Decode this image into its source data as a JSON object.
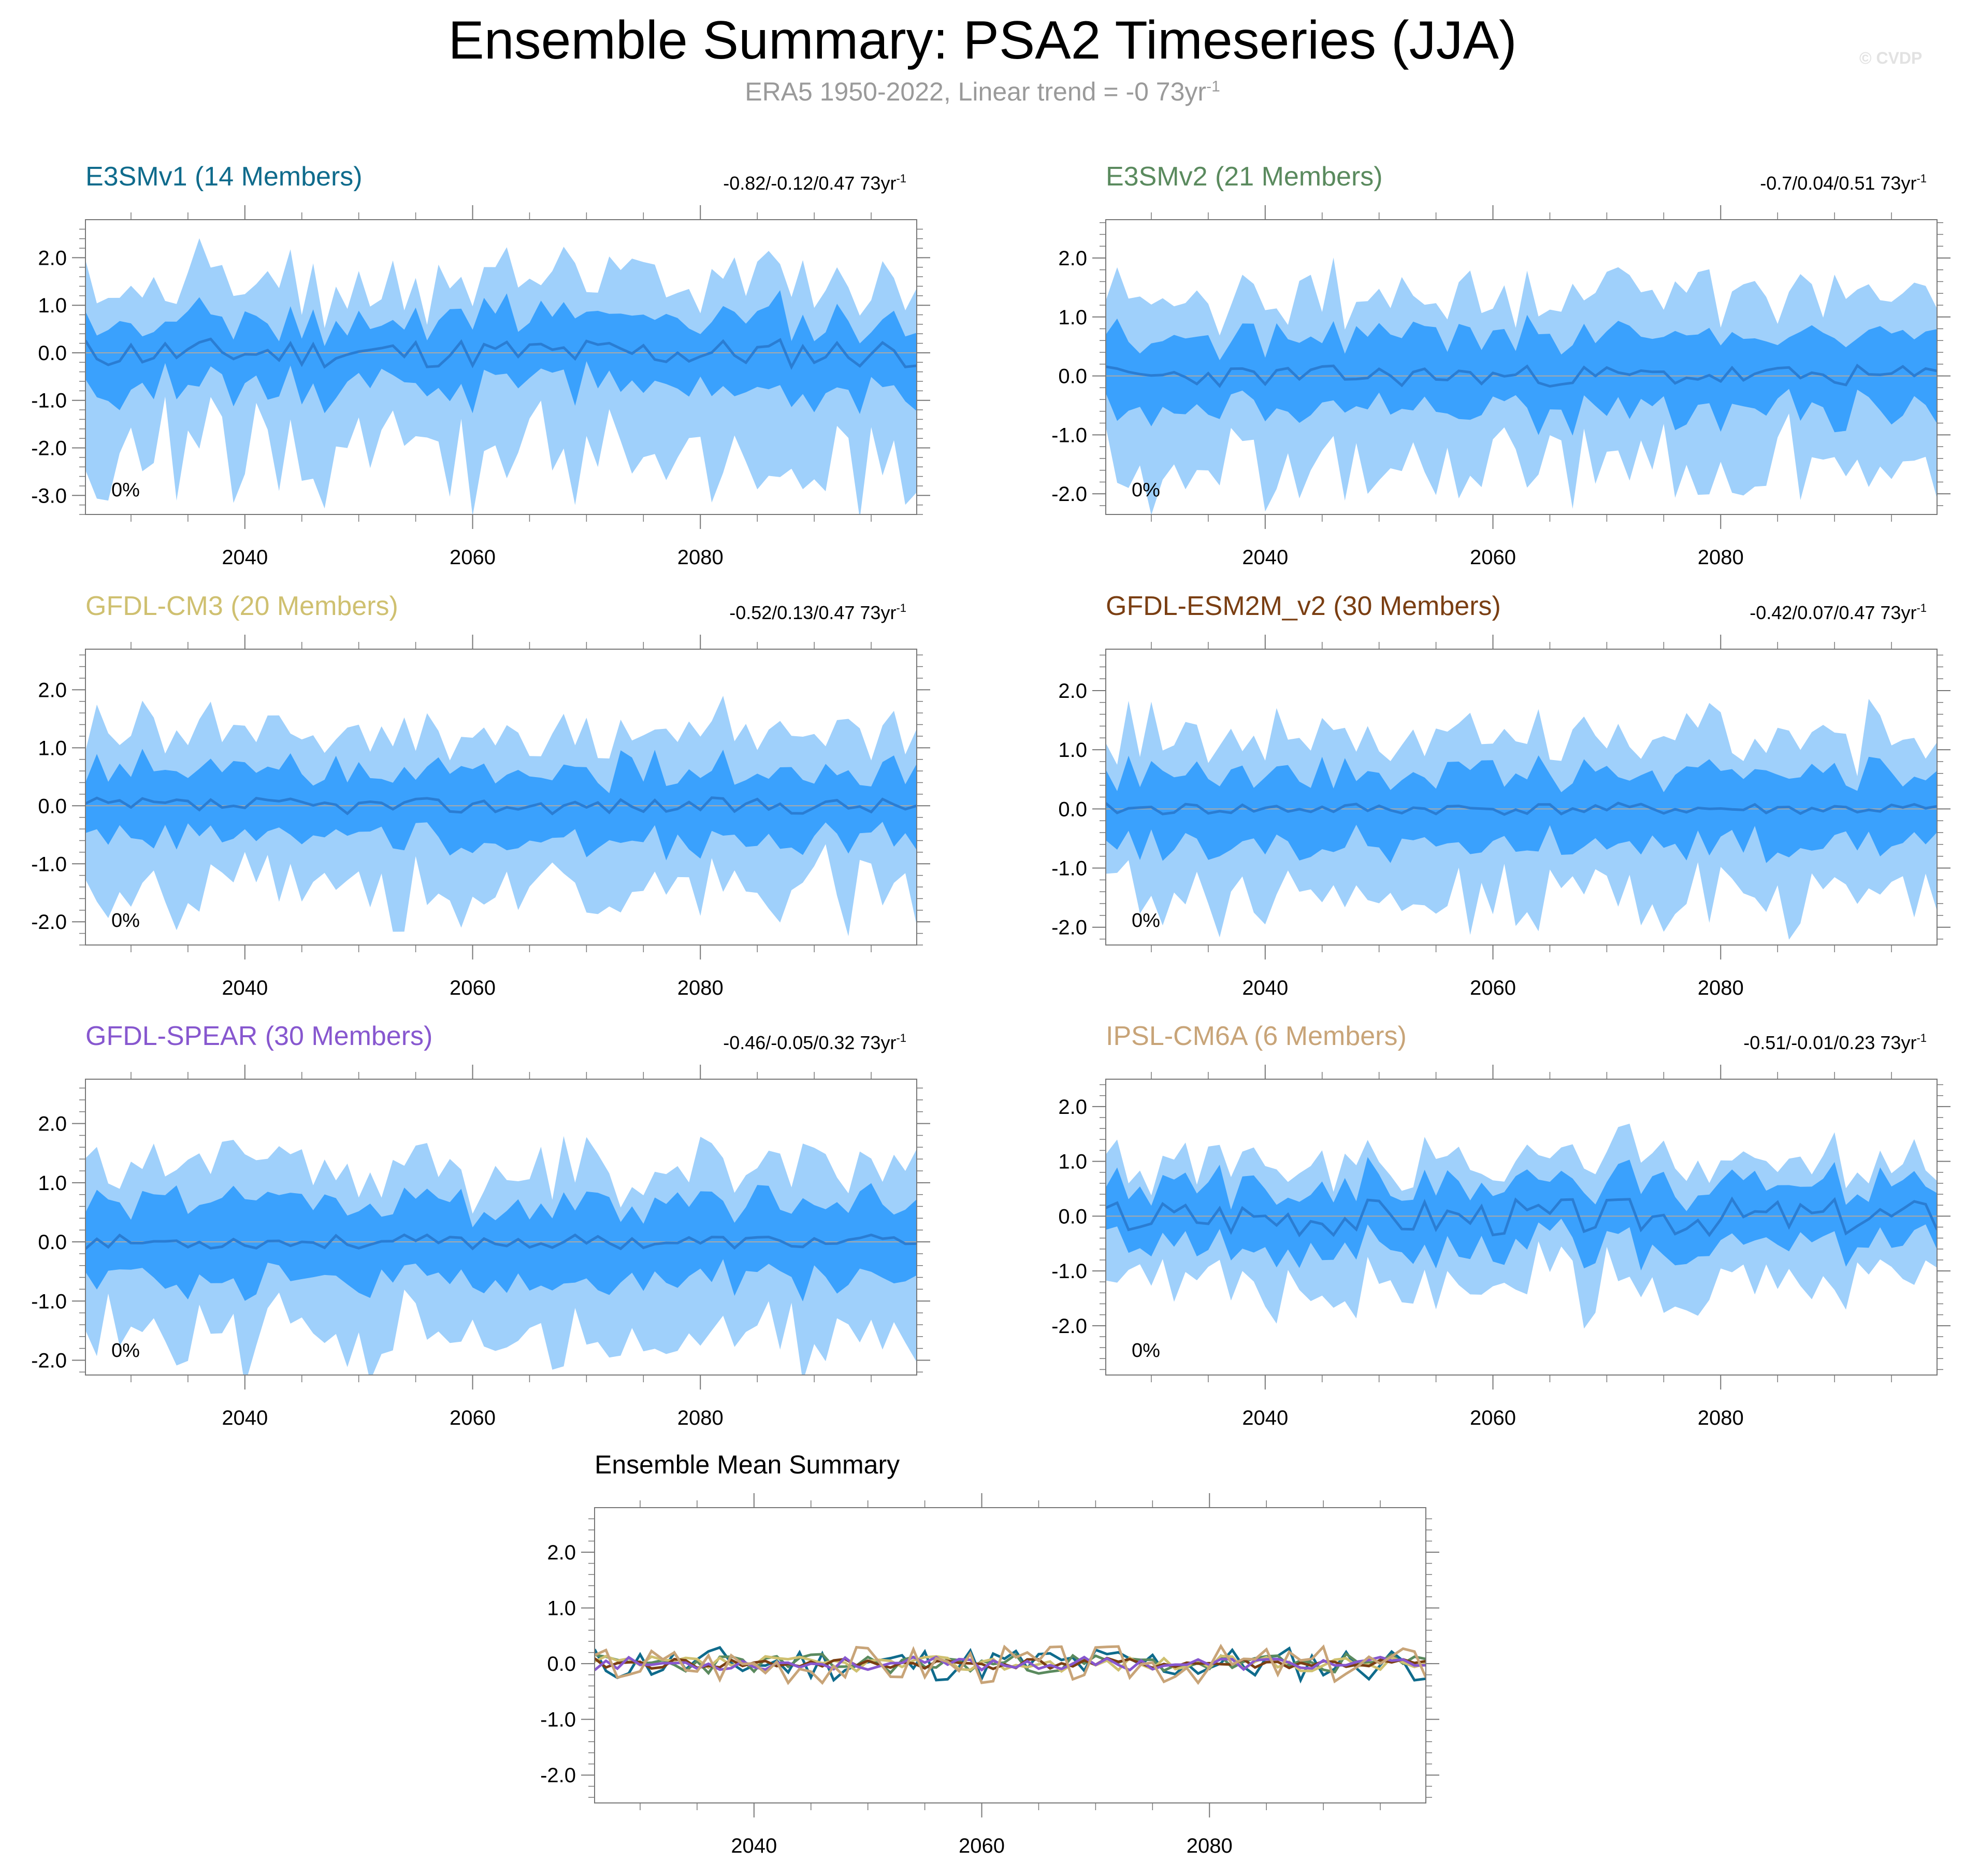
{
  "header": {
    "title": "Ensemble Summary: PSA2 Timeseries (JJA)",
    "subtitle": "ERA5 1950-2022, Linear trend = -0 73yr",
    "subtitle_sup": "-1",
    "watermark": "© CVDP"
  },
  "styles": {
    "band_outer": "#9fd0fb",
    "band_inner": "#3aa1fd",
    "median_line": "#2a7dd3",
    "zero_line": "#a9a9a9",
    "axis": "#777777"
  },
  "chart_data": [
    {
      "type": "area",
      "model": "E3SMv1",
      "title": "E3SMv1 (14 Members)",
      "title_color": "#0f6b8c",
      "stats": "-0.82/-0.12/0.47 73yr",
      "stats_sup": "-1",
      "percent_label": "0%",
      "x_range": [
        2026,
        2099
      ],
      "y_range": [
        -3.4,
        2.8
      ],
      "y_ticks": [
        2.0,
        1.0,
        0.0,
        -1.0,
        -2.0,
        -3.0
      ],
      "y_tick_labels": [
        "2.0",
        "1.0",
        "0.0",
        "-1.0",
        "-2.0",
        "-3.0"
      ],
      "x_ticks": [
        2040,
        2060,
        2080
      ],
      "x_tick_labels": [
        "2040",
        "2060",
        "2080"
      ],
      "seed": 11,
      "mean_amp": 0.32,
      "inner_width": 0.72,
      "outer_top": 1.4,
      "outer_bottom": 2.25
    },
    {
      "type": "area",
      "model": "E3SMv2",
      "title": "E3SMv2 (21 Members)",
      "title_color": "#5a8a5e",
      "stats": "-0.7/0.04/0.51 73yr",
      "stats_sup": "-1",
      "percent_label": "0%",
      "x_range": [
        2026,
        2099
      ],
      "y_range": [
        -2.35,
        2.65
      ],
      "y_ticks": [
        2.0,
        1.0,
        0.0,
        -1.0,
        -2.0
      ],
      "y_tick_labels": [
        "2.0",
        "1.0",
        "0.0",
        "-1.0",
        "-2.0"
      ],
      "x_ticks": [
        2040,
        2060,
        2080
      ],
      "x_tick_labels": [
        "2040",
        "2060",
        "2080"
      ],
      "seed": 23,
      "mean_amp": 0.18,
      "inner_width": 0.62,
      "outer_top": 1.2,
      "outer_bottom": 1.55
    },
    {
      "type": "area",
      "model": "GFDL-CM3",
      "title": "GFDL-CM3 (20 Members)",
      "title_color": "#cfc070",
      "stats": "-0.52/0.13/0.47 73yr",
      "stats_sup": "-1",
      "percent_label": "0%",
      "x_range": [
        2026,
        2099
      ],
      "y_range": [
        -2.4,
        2.7
      ],
      "y_ticks": [
        2.0,
        1.0,
        0.0,
        -1.0,
        -2.0
      ],
      "y_tick_labels": [
        "2.0",
        "1.0",
        "0.0",
        "-1.0",
        "-2.0"
      ],
      "x_ticks": [
        2040,
        2060,
        2080
      ],
      "x_tick_labels": [
        "2040",
        "2060",
        "2080"
      ],
      "seed": 37,
      "mean_amp": 0.14,
      "inner_width": 0.6,
      "outer_top": 1.1,
      "outer_bottom": 1.45
    },
    {
      "type": "area",
      "model": "GFDL-ESM2M_v2",
      "title": "GFDL-ESM2M_v2 (30 Members)",
      "title_color": "#7a3e12",
      "stats": "-0.42/0.07/0.47 73yr",
      "stats_sup": "-1",
      "percent_label": "0%",
      "x_range": [
        2026,
        2099
      ],
      "y_range": [
        -2.3,
        2.7
      ],
      "y_ticks": [
        2.0,
        1.0,
        0.0,
        -1.0,
        -2.0
      ],
      "y_tick_labels": [
        "2.0",
        "1.0",
        "0.0",
        "-1.0",
        "-2.0"
      ],
      "x_ticks": [
        2040,
        2060,
        2080
      ],
      "x_tick_labels": [
        "2040",
        "2060",
        "2080"
      ],
      "seed": 41,
      "mean_amp": 0.1,
      "inner_width": 0.62,
      "outer_top": 1.15,
      "outer_bottom": 1.45
    },
    {
      "type": "area",
      "model": "GFDL-SPEAR",
      "title": "GFDL-SPEAR (30 Members)",
      "title_color": "#8757cf",
      "stats": "-0.46/-0.05/0.32 73yr",
      "stats_sup": "-1",
      "percent_label": "0%",
      "x_range": [
        2026,
        2099
      ],
      "y_range": [
        -2.25,
        2.75
      ],
      "y_ticks": [
        2.0,
        1.0,
        0.0,
        -1.0,
        -2.0
      ],
      "y_tick_labels": [
        "2.0",
        "1.0",
        "0.0",
        "-1.0",
        "-2.0"
      ],
      "x_ticks": [
        2040,
        2060,
        2080
      ],
      "x_tick_labels": [
        "2040",
        "2060",
        "2080"
      ],
      "seed": 53,
      "mean_amp": 0.12,
      "inner_width": 0.65,
      "outer_top": 1.15,
      "outer_bottom": 1.5
    },
    {
      "type": "area",
      "model": "IPSL-CM6A",
      "title": "IPSL-CM6A (6 Members)",
      "title_color": "#c8a478",
      "stats": "-0.51/-0.01/0.23 73yr",
      "stats_sup": "-1",
      "percent_label": "0%",
      "x_range": [
        2026,
        2099
      ],
      "y_range": [
        -2.9,
        2.5
      ],
      "y_ticks": [
        2.0,
        1.0,
        0.0,
        -1.0,
        -2.0
      ],
      "y_tick_labels": [
        "2.0",
        "1.0",
        "0.0",
        "-1.0",
        "-2.0"
      ],
      "x_ticks": [
        2040,
        2060,
        2080
      ],
      "x_tick_labels": [
        "2040",
        "2060",
        "2080"
      ],
      "seed": 67,
      "mean_amp": 0.35,
      "inner_width": 0.55,
      "outer_top": 0.75,
      "outer_bottom": 1.1
    },
    {
      "type": "line",
      "model": "Ensemble Mean",
      "title": "Ensemble Mean Summary",
      "title_color": "#000000",
      "x_range": [
        2026,
        2099
      ],
      "y_range": [
        -2.5,
        2.8
      ],
      "y_ticks": [
        2.0,
        1.0,
        0.0,
        -1.0,
        -2.0
      ],
      "y_tick_labels": [
        "2.0",
        "1.0",
        "0.0",
        "-1.0",
        "-2.0"
      ],
      "x_ticks": [
        2040,
        2060,
        2080
      ],
      "x_tick_labels": [
        "2040",
        "2060",
        "2080"
      ],
      "series": [
        {
          "name": "E3SMv1",
          "color": "#0f6b8c",
          "seed": 11,
          "amp": 0.32
        },
        {
          "name": "E3SMv2",
          "color": "#5a8a5e",
          "seed": 23,
          "amp": 0.18
        },
        {
          "name": "GFDL-CM3",
          "color": "#cfc070",
          "seed": 37,
          "amp": 0.14
        },
        {
          "name": "GFDL-ESM2M_v2",
          "color": "#7a3e12",
          "seed": 41,
          "amp": 0.1
        },
        {
          "name": "GFDL-SPEAR",
          "color": "#8757cf",
          "seed": 53,
          "amp": 0.12
        },
        {
          "name": "IPSL-CM6A",
          "color": "#c8a478",
          "seed": 67,
          "amp": 0.35
        }
      ]
    }
  ]
}
